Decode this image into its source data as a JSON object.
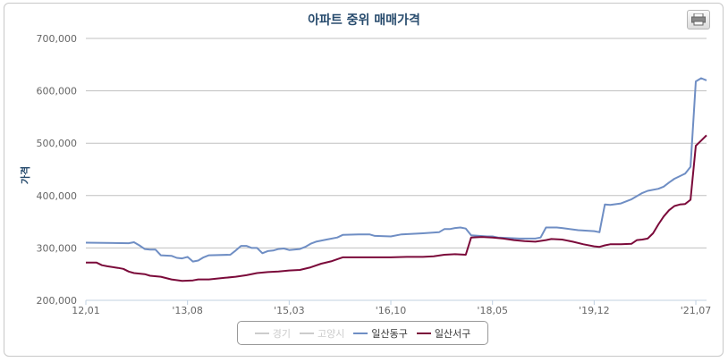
{
  "chart_data": {
    "type": "line",
    "title": "아파트 중위 매매가격",
    "ylabel": "가격",
    "xlabel": "",
    "ylim": [
      200000,
      700000
    ],
    "y_ticks": [
      "200,000",
      "300,000",
      "400,000",
      "500,000",
      "600,000",
      "700,000"
    ],
    "y_tick_values": [
      200000,
      300000,
      400000,
      500000,
      600000,
      700000
    ],
    "x_ticks": [
      "12,01",
      "'13,08",
      "'15,03",
      "'16,10",
      "'18,05",
      "'19,12",
      "'21,07"
    ],
    "x_start": "2012-01",
    "x_end": "2021-09",
    "grid": true,
    "legend_position": "bottom-center",
    "series": [
      {
        "name": "경기",
        "color": "#cccccc",
        "visible": false,
        "points": []
      },
      {
        "name": "고양시",
        "color": "#cccccc",
        "visible": false,
        "points": []
      },
      {
        "name": "일산동구",
        "color": "#6f8ec4",
        "visible": true,
        "points": [
          [
            "2012-01",
            310000
          ],
          [
            "2012-09",
            309000
          ],
          [
            "2012-10",
            311000
          ],
          [
            "2012-11",
            305000
          ],
          [
            "2012-12",
            298000
          ],
          [
            "2013-01",
            297000
          ],
          [
            "2013-02",
            297000
          ],
          [
            "2013-03",
            286000
          ],
          [
            "2013-05",
            285000
          ],
          [
            "2013-06",
            281000
          ],
          [
            "2013-07",
            280000
          ],
          [
            "2013-08",
            283000
          ],
          [
            "2013-09",
            274000
          ],
          [
            "2013-10",
            276000
          ],
          [
            "2013-11",
            282000
          ],
          [
            "2013-12",
            286000
          ],
          [
            "2014-04",
            287000
          ],
          [
            "2014-05",
            295000
          ],
          [
            "2014-06",
            304000
          ],
          [
            "2014-07",
            304000
          ],
          [
            "2014-08",
            300000
          ],
          [
            "2014-09",
            300000
          ],
          [
            "2014-10",
            290000
          ],
          [
            "2014-11",
            294000
          ],
          [
            "2014-12",
            295000
          ],
          [
            "2015-01",
            298000
          ],
          [
            "2015-02",
            299000
          ],
          [
            "2015-03",
            296000
          ],
          [
            "2015-05",
            298000
          ],
          [
            "2015-06",
            302000
          ],
          [
            "2015-07",
            308000
          ],
          [
            "2015-08",
            312000
          ],
          [
            "2015-10",
            316000
          ],
          [
            "2015-12",
            320000
          ],
          [
            "2016-01",
            325000
          ],
          [
            "2016-04",
            326000
          ],
          [
            "2016-06",
            326000
          ],
          [
            "2016-07",
            323000
          ],
          [
            "2016-10",
            322000
          ],
          [
            "2016-12",
            326000
          ],
          [
            "2017-04",
            328000
          ],
          [
            "2017-07",
            330000
          ],
          [
            "2017-08",
            336000
          ],
          [
            "2017-09",
            336000
          ],
          [
            "2017-10",
            338000
          ],
          [
            "2017-11",
            339000
          ],
          [
            "2017-12",
            337000
          ],
          [
            "2018-01",
            324000
          ],
          [
            "2018-04",
            322000
          ],
          [
            "2018-05",
            322000
          ],
          [
            "2018-06",
            320000
          ],
          [
            "2018-10",
            318000
          ],
          [
            "2019-01",
            318000
          ],
          [
            "2019-02",
            320000
          ],
          [
            "2019-03",
            339000
          ],
          [
            "2019-05",
            339000
          ],
          [
            "2019-06",
            338000
          ],
          [
            "2019-09",
            334000
          ],
          [
            "2019-12",
            332000
          ],
          [
            "2020-01",
            330000
          ],
          [
            "2020-02",
            383000
          ],
          [
            "2020-03",
            382000
          ],
          [
            "2020-05",
            385000
          ],
          [
            "2020-07",
            393000
          ],
          [
            "2020-09",
            405000
          ],
          [
            "2020-10",
            409000
          ],
          [
            "2020-12",
            413000
          ],
          [
            "2021-01",
            417000
          ],
          [
            "2021-02",
            425000
          ],
          [
            "2021-03",
            432000
          ],
          [
            "2021-04",
            437000
          ],
          [
            "2021-05",
            442000
          ],
          [
            "2021-06",
            455000
          ],
          [
            "2021-07",
            618000
          ],
          [
            "2021-08",
            624000
          ],
          [
            "2021-09",
            620000
          ]
        ]
      },
      {
        "name": "일산서구",
        "color": "#7b0a3a",
        "visible": true,
        "points": [
          [
            "2012-01",
            272000
          ],
          [
            "2012-03",
            272000
          ],
          [
            "2012-04",
            267000
          ],
          [
            "2012-05",
            265000
          ],
          [
            "2012-07",
            262000
          ],
          [
            "2012-08",
            260000
          ],
          [
            "2012-09",
            255000
          ],
          [
            "2012-10",
            252000
          ],
          [
            "2012-12",
            250000
          ],
          [
            "2013-01",
            247000
          ],
          [
            "2013-03",
            245000
          ],
          [
            "2013-05",
            240000
          ],
          [
            "2013-07",
            237000
          ],
          [
            "2013-09",
            238000
          ],
          [
            "2013-10",
            240000
          ],
          [
            "2013-12",
            240000
          ],
          [
            "2014-03",
            243000
          ],
          [
            "2014-05",
            245000
          ],
          [
            "2014-07",
            248000
          ],
          [
            "2014-09",
            252000
          ],
          [
            "2014-11",
            254000
          ],
          [
            "2015-01",
            255000
          ],
          [
            "2015-03",
            257000
          ],
          [
            "2015-05",
            258000
          ],
          [
            "2015-07",
            263000
          ],
          [
            "2015-09",
            270000
          ],
          [
            "2015-11",
            275000
          ],
          [
            "2016-01",
            282000
          ],
          [
            "2016-04",
            282000
          ],
          [
            "2016-07",
            282000
          ],
          [
            "2016-10",
            282000
          ],
          [
            "2017-01",
            283000
          ],
          [
            "2017-04",
            283000
          ],
          [
            "2017-06",
            284000
          ],
          [
            "2017-08",
            287000
          ],
          [
            "2017-10",
            288000
          ],
          [
            "2017-12",
            287000
          ],
          [
            "2018-01",
            320000
          ],
          [
            "2018-03",
            321000
          ],
          [
            "2018-05",
            320000
          ],
          [
            "2018-07",
            318000
          ],
          [
            "2018-09",
            315000
          ],
          [
            "2018-11",
            313000
          ],
          [
            "2019-01",
            312000
          ],
          [
            "2019-03",
            315000
          ],
          [
            "2019-04",
            317000
          ],
          [
            "2019-06",
            316000
          ],
          [
            "2019-08",
            312000
          ],
          [
            "2019-10",
            307000
          ],
          [
            "2019-12",
            303000
          ],
          [
            "2020-01",
            302000
          ],
          [
            "2020-02",
            305000
          ],
          [
            "2020-03",
            307000
          ],
          [
            "2020-05",
            307000
          ],
          [
            "2020-07",
            308000
          ],
          [
            "2020-08",
            315000
          ],
          [
            "2020-09",
            316000
          ],
          [
            "2020-10",
            318000
          ],
          [
            "2020-11",
            328000
          ],
          [
            "2020-12",
            345000
          ],
          [
            "2021-01",
            360000
          ],
          [
            "2021-02",
            372000
          ],
          [
            "2021-03",
            380000
          ],
          [
            "2021-04",
            383000
          ],
          [
            "2021-05",
            384000
          ],
          [
            "2021-06",
            392000
          ],
          [
            "2021-07",
            495000
          ],
          [
            "2021-08",
            505000
          ],
          [
            "2021-09",
            515000
          ]
        ]
      }
    ]
  }
}
